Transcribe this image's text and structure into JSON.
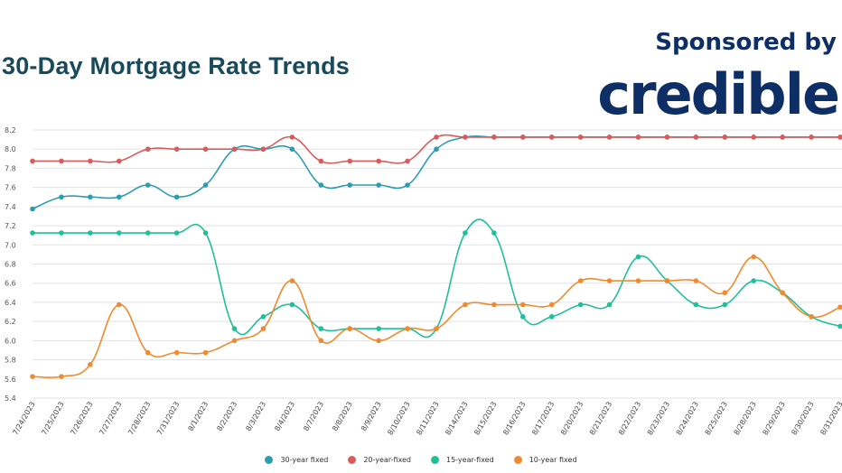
{
  "header": {
    "title": "30-Day Mortgage Rate Trends",
    "sponsor_text": "Sponsored by",
    "sponsor_logo_text": "credible"
  },
  "chart_data": {
    "type": "line",
    "title": "30-Day Mortgage Rate Trends",
    "xlabel": "",
    "ylabel": "",
    "ylim": [
      5.4,
      8.2
    ],
    "yticks": [
      "8.2",
      "8.0",
      "7.8",
      "7.6",
      "7.4",
      "7.2",
      "7.0",
      "6.8",
      "6.6",
      "6.4",
      "6.2",
      "6.0",
      "5.8",
      "5.6",
      "5.4"
    ],
    "grid": true,
    "legend_position": "bottom",
    "categories": [
      "7/24/2023",
      "7/25/2023",
      "7/26/2023",
      "7/27/2023",
      "7/28/2023",
      "7/31/2023",
      "8/1/2023",
      "8/2/2023",
      "8/3/2023",
      "8/4/2023",
      "8/7/2023",
      "8/8/2023",
      "8/9/2023",
      "8/10/2023",
      "8/11/2023",
      "8/14/2023",
      "8/15/2023",
      "8/16/2023",
      "8/17/2023",
      "8/20/2023",
      "8/21/2023",
      "8/22/2023",
      "8/23/2023",
      "8/24/2023",
      "8/25/2023",
      "8/28/2023",
      "8/29/2023",
      "8/30/2023",
      "8/31/2023"
    ],
    "series": [
      {
        "name": "30-year fixed",
        "color": "#2a9db0",
        "values": [
          7.375,
          7.5,
          7.5,
          7.5,
          7.625,
          7.5,
          7.625,
          8.0,
          8.0,
          8.0,
          7.625,
          7.625,
          7.625,
          7.625,
          8.0,
          8.125,
          8.125,
          8.125,
          8.125,
          8.125,
          8.125,
          8.125,
          8.125,
          8.125,
          8.125,
          8.125,
          8.125,
          8.125,
          8.125
        ]
      },
      {
        "name": "20-year-fixed",
        "color": "#d95b5b",
        "values": [
          7.875,
          7.875,
          7.875,
          7.875,
          8.0,
          8.0,
          8.0,
          8.0,
          8.0,
          8.125,
          7.875,
          7.875,
          7.875,
          7.875,
          8.125,
          8.125,
          8.125,
          8.125,
          8.125,
          8.125,
          8.125,
          8.125,
          8.125,
          8.125,
          8.125,
          8.125,
          8.125,
          8.125,
          8.125
        ]
      },
      {
        "name": "15-year-fixed",
        "color": "#1fbf9a",
        "values": [
          7.125,
          7.125,
          7.125,
          7.125,
          7.125,
          7.125,
          7.125,
          6.125,
          6.25,
          6.375,
          6.125,
          6.125,
          6.125,
          6.125,
          6.125,
          7.125,
          7.125,
          6.25,
          6.25,
          6.375,
          6.375,
          6.875,
          6.625,
          6.375,
          6.375,
          6.625,
          6.5,
          6.25,
          6.15
        ]
      },
      {
        "name": "10-year fixed",
        "color": "#f08a2e",
        "values": [
          5.625,
          5.625,
          5.75,
          6.375,
          5.875,
          5.875,
          5.875,
          6.0,
          6.125,
          6.625,
          6.0,
          6.125,
          6.0,
          6.125,
          6.125,
          6.375,
          6.375,
          6.375,
          6.375,
          6.625,
          6.625,
          6.625,
          6.625,
          6.625,
          6.5,
          6.875,
          6.5,
          6.25,
          6.35
        ]
      }
    ]
  }
}
